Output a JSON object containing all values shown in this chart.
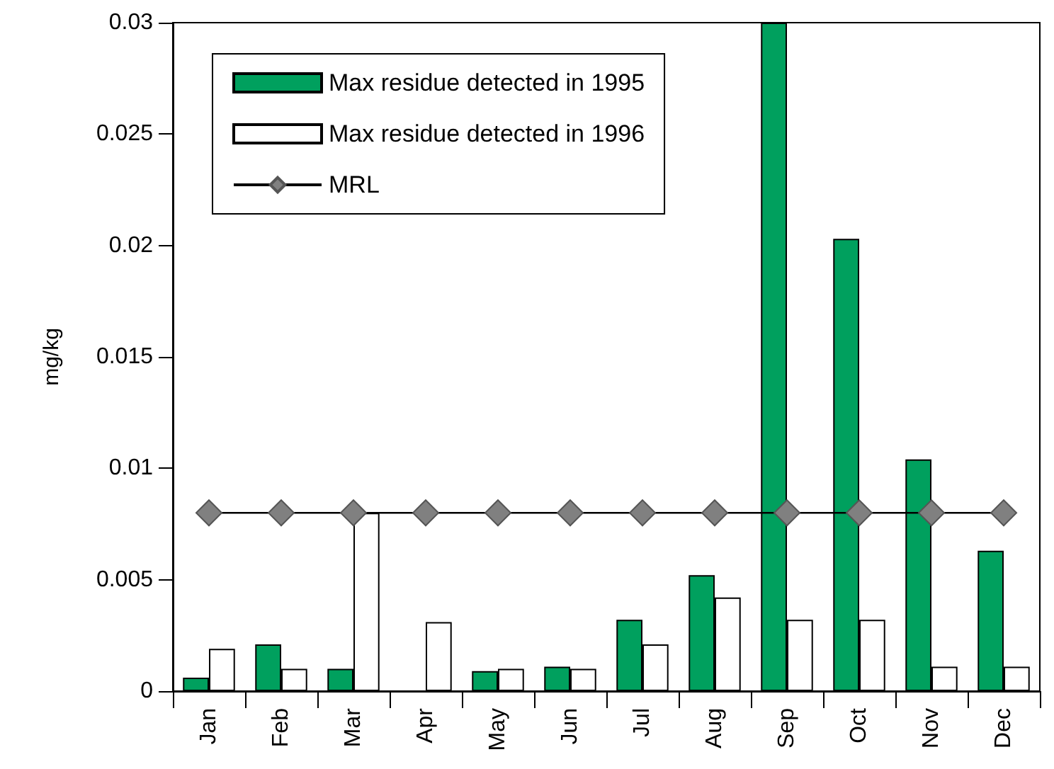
{
  "chart_data": {
    "type": "bar",
    "ylabel": "mg/kg",
    "categories": [
      "Jan",
      "Feb",
      "Mar",
      "Apr",
      "May",
      "Jun",
      "Jul",
      "Aug",
      "Sep",
      "Oct",
      "Nov",
      "Dec"
    ],
    "series": [
      {
        "name": "Max residue detected in 1995",
        "color": "#00a05e",
        "values": [
          0.0006,
          0.0021,
          0.001,
          null,
          0.0009,
          0.0011,
          0.0032,
          0.0052,
          0.03,
          0.0203,
          0.0104,
          0.0063
        ]
      },
      {
        "name": "Max residue detected in 1996",
        "color": "#ffffff",
        "values": [
          0.0019,
          0.001,
          0.008,
          0.0031,
          0.001,
          0.001,
          0.0021,
          0.0042,
          0.0032,
          0.0032,
          0.0011,
          0.0011
        ]
      },
      {
        "name": "MRL",
        "type": "line",
        "color": "#808080",
        "marker": "diamond",
        "values": [
          0.008,
          0.008,
          0.008,
          0.008,
          0.008,
          0.008,
          0.008,
          0.008,
          0.008,
          0.008,
          0.008,
          0.008
        ]
      }
    ],
    "ylim": [
      0,
      0.03
    ],
    "yticks": [
      0,
      0.005,
      0.01,
      0.015,
      0.02,
      0.025,
      0.03
    ],
    "grid": false,
    "legend": "top left"
  }
}
